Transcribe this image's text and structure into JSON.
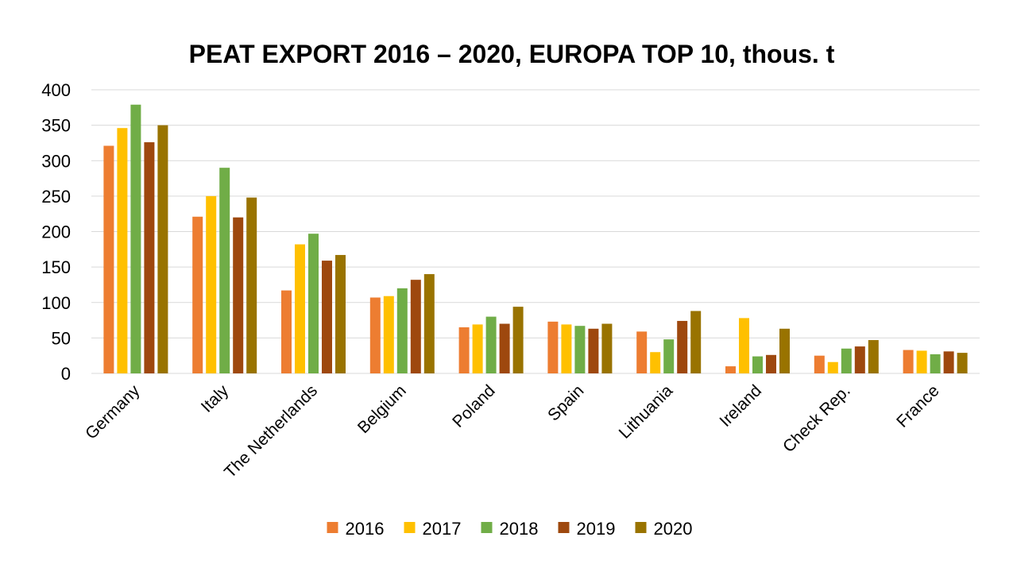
{
  "chart_data": {
    "type": "bar",
    "title": "PEAT EXPORT 2016 – 2020, EUROPA TOP 10, thous. t",
    "xlabel": "",
    "ylabel": "",
    "ylim": [
      0,
      400
    ],
    "yticks": [
      0,
      50,
      100,
      150,
      200,
      250,
      300,
      350,
      400
    ],
    "grid": true,
    "legend_position": "bottom",
    "categories": [
      "Germany",
      "Italy",
      "The Netherlands",
      "Belgium",
      "Poland",
      "Spain",
      "Lithuania",
      "Ireland",
      "Check Rep.",
      "France"
    ],
    "series": [
      {
        "name": "2016",
        "color": "#ed7d31",
        "values": [
          321,
          221,
          117,
          107,
          65,
          73,
          59,
          10,
          25,
          33
        ]
      },
      {
        "name": "2017",
        "color": "#ffc000",
        "values": [
          346,
          250,
          182,
          109,
          69,
          69,
          30,
          78,
          16,
          32
        ]
      },
      {
        "name": "2018",
        "color": "#70ad47",
        "values": [
          379,
          290,
          197,
          120,
          80,
          67,
          48,
          24,
          35,
          27
        ]
      },
      {
        "name": "2019",
        "color": "#9e480e",
        "values": [
          326,
          220,
          159,
          132,
          70,
          63,
          74,
          26,
          38,
          31
        ]
      },
      {
        "name": "2020",
        "color": "#997300",
        "values": [
          350,
          248,
          167,
          140,
          94,
          70,
          88,
          63,
          47,
          29
        ]
      }
    ]
  }
}
